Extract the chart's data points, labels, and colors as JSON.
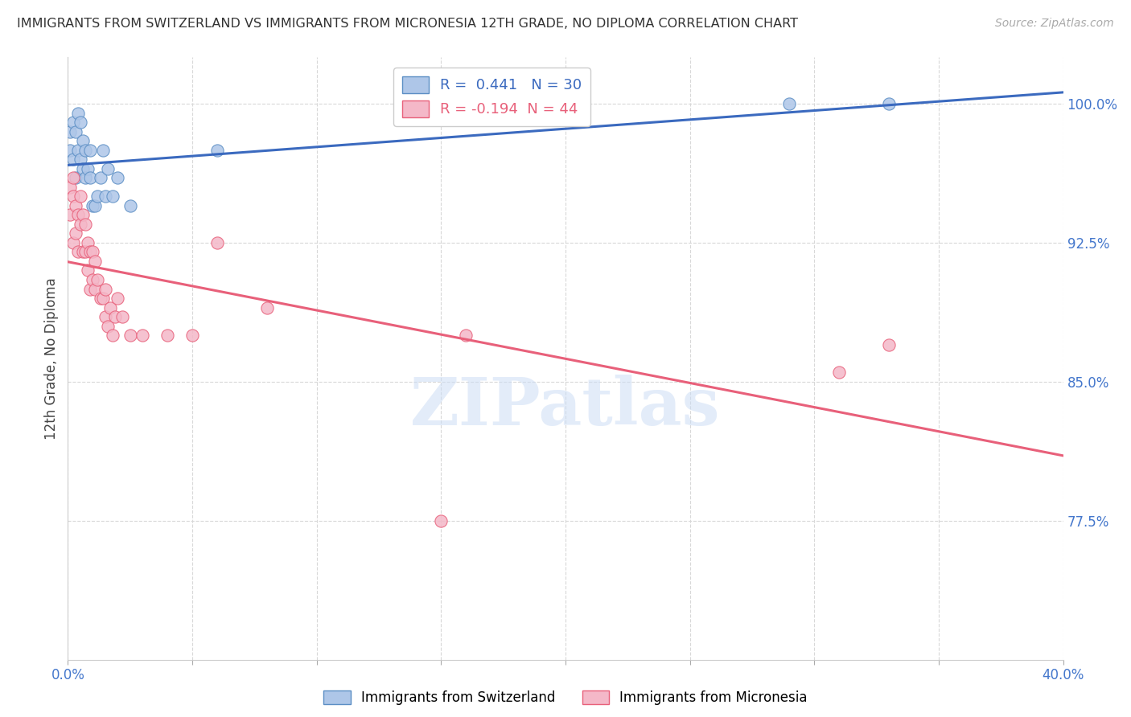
{
  "title": "IMMIGRANTS FROM SWITZERLAND VS IMMIGRANTS FROM MICRONESIA 12TH GRADE, NO DIPLOMA CORRELATION CHART",
  "source": "Source: ZipAtlas.com",
  "ylabel": "12th Grade, No Diploma",
  "watermark": "ZIPatlas",
  "x_min": 0.0,
  "x_max": 0.4,
  "y_min": 0.7,
  "y_max": 1.025,
  "x_ticks": [
    0.0,
    0.05,
    0.1,
    0.15,
    0.2,
    0.25,
    0.3,
    0.35,
    0.4
  ],
  "x_tick_labels": [
    "0.0%",
    "",
    "",
    "",
    "",
    "",
    "",
    "",
    "40.0%"
  ],
  "y_ticks": [
    0.775,
    0.85,
    0.925,
    1.0
  ],
  "y_tick_labels": [
    "77.5%",
    "85.0%",
    "92.5%",
    "100.0%"
  ],
  "grid_color": "#d8d8d8",
  "background_color": "#ffffff",
  "switzerland_color": "#aec6e8",
  "micronesia_color": "#f4b8c8",
  "switzerland_edge_color": "#5b8ec4",
  "micronesia_edge_color": "#e8607a",
  "switzerland_line_color": "#3b6abf",
  "micronesia_line_color": "#e8607a",
  "legend_border_color": "#cccccc",
  "R_switzerland": 0.441,
  "N_switzerland": 30,
  "R_micronesia": -0.194,
  "N_micronesia": 44,
  "sw_x": [
    0.001,
    0.001,
    0.002,
    0.002,
    0.003,
    0.003,
    0.004,
    0.004,
    0.005,
    0.005,
    0.006,
    0.006,
    0.007,
    0.007,
    0.008,
    0.009,
    0.009,
    0.01,
    0.011,
    0.012,
    0.013,
    0.014,
    0.015,
    0.016,
    0.018,
    0.02,
    0.025,
    0.06,
    0.29,
    0.33
  ],
  "sw_y": [
    0.975,
    0.985,
    0.97,
    0.99,
    0.96,
    0.985,
    0.975,
    0.995,
    0.97,
    0.99,
    0.965,
    0.98,
    0.96,
    0.975,
    0.965,
    0.96,
    0.975,
    0.945,
    0.945,
    0.95,
    0.96,
    0.975,
    0.95,
    0.965,
    0.95,
    0.96,
    0.945,
    0.975,
    1.0,
    1.0
  ],
  "mc_x": [
    0.001,
    0.001,
    0.002,
    0.002,
    0.002,
    0.003,
    0.003,
    0.004,
    0.004,
    0.005,
    0.005,
    0.006,
    0.006,
    0.007,
    0.007,
    0.008,
    0.008,
    0.009,
    0.009,
    0.01,
    0.01,
    0.011,
    0.011,
    0.012,
    0.013,
    0.014,
    0.015,
    0.015,
    0.016,
    0.017,
    0.018,
    0.019,
    0.02,
    0.022,
    0.025,
    0.03,
    0.04,
    0.05,
    0.06,
    0.08,
    0.15,
    0.16,
    0.33,
    0.31
  ],
  "mc_y": [
    0.94,
    0.955,
    0.925,
    0.95,
    0.96,
    0.93,
    0.945,
    0.92,
    0.94,
    0.95,
    0.935,
    0.92,
    0.94,
    0.92,
    0.935,
    0.91,
    0.925,
    0.9,
    0.92,
    0.905,
    0.92,
    0.9,
    0.915,
    0.905,
    0.895,
    0.895,
    0.885,
    0.9,
    0.88,
    0.89,
    0.875,
    0.885,
    0.895,
    0.885,
    0.875,
    0.875,
    0.875,
    0.875,
    0.925,
    0.89,
    0.775,
    0.875,
    0.87,
    0.855
  ]
}
